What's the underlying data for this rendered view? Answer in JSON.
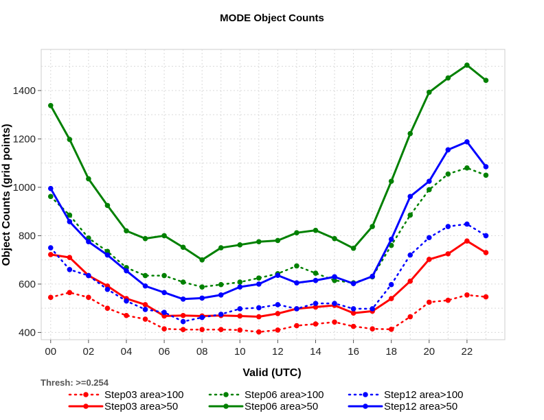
{
  "chart_data": {
    "type": "line",
    "title": "MODE Object Counts",
    "xlabel": "Valid (UTC)",
    "ylabel": "Object Counts (grid points)",
    "note": "Thresh: >=0.254",
    "x": [
      0,
      1,
      2,
      3,
      4,
      5,
      6,
      7,
      8,
      9,
      10,
      11,
      12,
      13,
      14,
      15,
      16,
      17,
      18,
      19,
      20,
      21,
      22,
      23
    ],
    "xlim": [
      -0.5,
      24
    ],
    "ylim": [
      370,
      1570
    ],
    "xticks": [
      0,
      2,
      4,
      6,
      8,
      10,
      12,
      14,
      16,
      18,
      20,
      22
    ],
    "xtick_labels": [
      "00",
      "02",
      "04",
      "06",
      "08",
      "10",
      "12",
      "14",
      "16",
      "18",
      "20",
      "22"
    ],
    "yticks": [
      400,
      600,
      800,
      1000,
      1200,
      1400
    ],
    "ytick_labels": [
      "400",
      "600",
      "800",
      "1000",
      "1200",
      "1400"
    ],
    "grid": true,
    "series": [
      {
        "name": "Step03 area>100",
        "color": "#ff0000",
        "style": "dotted",
        "values": [
          545,
          565,
          545,
          500,
          470,
          455,
          415,
          412,
          412,
          412,
          410,
          402,
          410,
          428,
          435,
          443,
          425,
          415,
          413,
          465,
          525,
          533,
          555,
          547
        ]
      },
      {
        "name": "Step03 area>50",
        "color": "#ff0000",
        "style": "solid",
        "values": [
          722,
          710,
          635,
          592,
          540,
          515,
          468,
          470,
          468,
          470,
          468,
          465,
          478,
          498,
          505,
          512,
          480,
          488,
          540,
          612,
          702,
          725,
          778,
          730
        ]
      },
      {
        "name": "Step06 area>100",
        "color": "#008000",
        "style": "dotted",
        "values": [
          962,
          885,
          790,
          735,
          668,
          635,
          635,
          608,
          588,
          598,
          608,
          625,
          643,
          675,
          645,
          615,
          605,
          630,
          760,
          885,
          990,
          1055,
          1080,
          1050
        ]
      },
      {
        "name": "Step06 area>50",
        "color": "#008000",
        "style": "solid",
        "values": [
          1338,
          1198,
          1035,
          925,
          820,
          788,
          800,
          752,
          700,
          750,
          762,
          775,
          780,
          812,
          822,
          788,
          748,
          838,
          1025,
          1222,
          1393,
          1452,
          1505,
          1442
        ]
      },
      {
        "name": "Step12 area>100",
        "color": "#0000ff",
        "style": "dotted",
        "values": [
          750,
          660,
          635,
          578,
          530,
          495,
          483,
          445,
          462,
          475,
          498,
          502,
          515,
          498,
          520,
          520,
          498,
          498,
          598,
          720,
          792,
          838,
          848,
          800
        ]
      },
      {
        "name": "Step12 area>50",
        "color": "#0000ff",
        "style": "solid",
        "values": [
          995,
          858,
          775,
          720,
          655,
          592,
          565,
          538,
          542,
          555,
          588,
          600,
          636,
          605,
          615,
          630,
          602,
          632,
          785,
          962,
          1025,
          1155,
          1188,
          1085
        ]
      }
    ],
    "legend": {
      "placement": "bottom",
      "columns": 3
    }
  }
}
